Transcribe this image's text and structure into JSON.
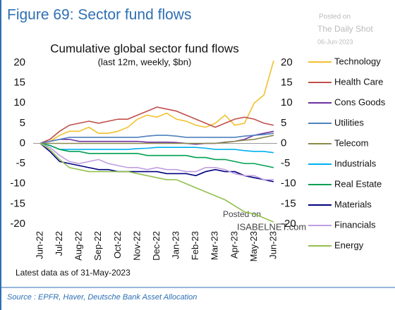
{
  "chart_data": {
    "type": "line",
    "title": "Figure 69: Sector fund flows",
    "chart_title": "Cumulative global sector fund flows",
    "subtitle": "(last 12m, weekly, $bn)",
    "note": "Latest data as of 31-May-2023",
    "source": "Source : EPFR, Haver, Deutsche Bank Asset Allocation",
    "annotations": [
      "Posted on",
      "The Daily Shot",
      "06-Jun-2023",
      "Posted on",
      "ISABELNET.com"
    ],
    "categories": [
      "Jun-22",
      null,
      "Jul-22",
      null,
      "Aug-22",
      null,
      "Sep-22",
      null,
      "Oct-22",
      null,
      "Nov-22",
      null,
      "Dec-22",
      null,
      "Jan-23",
      null,
      "Feb-23",
      null,
      "Mar-23",
      null,
      "Apr-23",
      null,
      "May-23",
      null,
      "Jun-23"
    ],
    "ylim": [
      -20,
      20
    ],
    "yticks": [
      -20,
      -15,
      -10,
      -5,
      0,
      5,
      10,
      15,
      20
    ],
    "y2lim": [
      -20,
      20
    ],
    "y2ticks": [
      -20,
      -15,
      -10,
      -5,
      0,
      5,
      10,
      15,
      20
    ],
    "series": [
      {
        "name": "Technology",
        "color": "#f2c12e",
        "values": [
          0,
          0.5,
          2,
          3,
          3,
          4,
          2.5,
          2.5,
          3,
          4,
          6,
          7,
          6.5,
          7.5,
          6,
          5.5,
          4.5,
          4,
          5,
          7,
          4.5,
          5,
          10,
          12,
          20.5
        ]
      },
      {
        "name": "Health Care",
        "color": "#c0504d",
        "values": [
          0,
          1,
          3,
          4.5,
          5,
          5.5,
          5,
          5.5,
          6,
          6,
          7,
          8,
          9,
          8.5,
          8,
          7,
          6,
          5,
          4,
          5,
          6,
          6.5,
          6,
          5,
          4.5
        ]
      },
      {
        "name": "Cons Goods",
        "color": "#7030a0",
        "values": [
          0,
          0.5,
          1,
          1,
          0.5,
          0.5,
          0.5,
          0.5,
          0.5,
          0.5,
          0.5,
          0.3,
          0.3,
          0.3,
          0.2,
          0,
          -0.2,
          0,
          0,
          0.3,
          0.5,
          1,
          2,
          2.5,
          3
        ]
      },
      {
        "name": "Utilities",
        "color": "#4f81bd",
        "values": [
          0,
          0.5,
          1,
          1.5,
          1.5,
          1.5,
          1.5,
          1.5,
          1.5,
          1.5,
          1.5,
          1.8,
          2,
          2,
          1.8,
          1.5,
          1.5,
          1.5,
          1.5,
          1.5,
          1.5,
          1.8,
          2,
          2.2,
          2.5
        ]
      },
      {
        "name": "Telecom",
        "color": "#8c8a4a",
        "values": [
          0,
          0,
          0,
          0,
          0,
          0,
          0,
          0,
          0,
          0,
          0,
          0,
          0,
          0,
          0,
          0,
          0,
          0,
          0,
          0.2,
          0.5,
          0.8,
          1,
          1.5,
          2
        ]
      },
      {
        "name": "Industrials",
        "color": "#00b0f0",
        "values": [
          0,
          -0.5,
          -1.5,
          -1.5,
          -1.5,
          -1.5,
          -1.5,
          -1.5,
          -1.5,
          -1.5,
          -1.3,
          -1.2,
          -1,
          -1,
          -1,
          -1,
          -1,
          -1.2,
          -1.5,
          -1.5,
          -1.5,
          -1.8,
          -2,
          -2,
          -2.3
        ]
      },
      {
        "name": "Real Estate",
        "color": "#00a050",
        "values": [
          0,
          -0.5,
          -1.5,
          -2,
          -2,
          -2.5,
          -2.5,
          -2.5,
          -2.5,
          -2.5,
          -2.5,
          -3,
          -3,
          -3,
          -3,
          -3,
          -3.5,
          -3.5,
          -4,
          -4,
          -4.5,
          -5,
          -5,
          -5.5,
          -6
        ]
      },
      {
        "name": "Materials",
        "color": "#000080",
        "values": [
          0,
          -2,
          -4.5,
          -5,
          -5.5,
          -6,
          -6.5,
          -6.5,
          -7,
          -7,
          -7,
          -7,
          -7,
          -7.5,
          -7.5,
          -7.5,
          -8,
          -7,
          -6.5,
          -7,
          -7,
          -8,
          -8.5,
          -9,
          -9.5
        ]
      },
      {
        "name": "Financials",
        "color": "#c09ee0",
        "values": [
          0,
          -1,
          -3,
          -4.5,
          -5,
          -4.5,
          -4,
          -5,
          -5.5,
          -6,
          -6,
          -6.5,
          -6,
          -6.5,
          -6.5,
          -7,
          -7,
          -6,
          -6,
          -6.5,
          -7.5,
          -8,
          -8,
          -9,
          -9
        ]
      },
      {
        "name": "Energy",
        "color": "#92c050",
        "values": [
          0,
          -1.5,
          -4,
          -6,
          -6.5,
          -7,
          -7,
          -7,
          -7,
          -7,
          -7.5,
          -8,
          -8.5,
          -9,
          -9,
          -10,
          -11,
          -12,
          -13,
          -14,
          -15.5,
          -17,
          -17.5,
          -18.5,
          -19.5
        ]
      }
    ]
  }
}
